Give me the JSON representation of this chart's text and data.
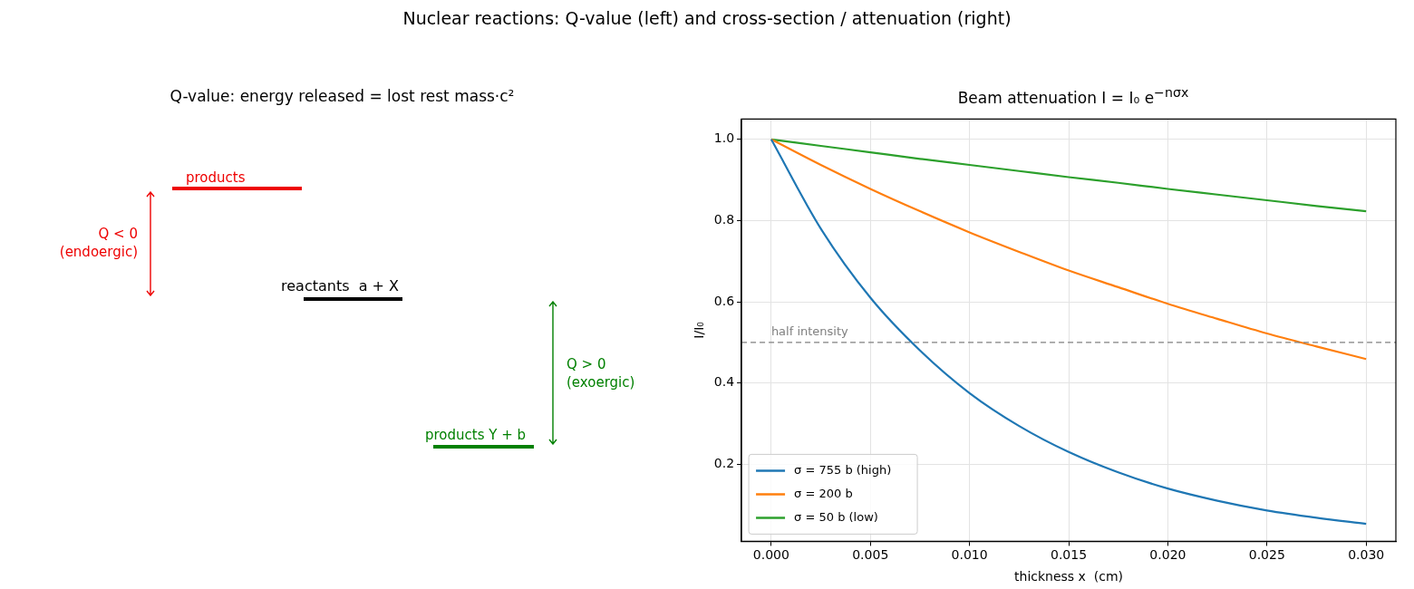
{
  "chart_data": [
    {
      "type": "other",
      "title": "Q-value: energy released = lost rest mass·c²",
      "annotations": [
        "Nuclear reactions: Q-value (left) and cross-section / attenuation (right)",
        "products",
        "Q < 0\n(endoergic)",
        "reactants  a + X",
        "Q > 0\n(exoergic)",
        "products Y + b"
      ]
    },
    {
      "type": "line",
      "title": "Beam attenuation  I = I₀ e$^{−nσx}$",
      "xlabel": "thickness x  (cm)",
      "ylabel": "I/I₀",
      "x": [
        0,
        0.0025,
        0.005,
        0.0075,
        0.01,
        0.0125,
        0.015,
        0.0175,
        0.02,
        0.0225,
        0.025,
        0.0275,
        0.03
      ],
      "series": [
        {
          "name": "σ = 755 b (high)",
          "color": "#1f77b4",
          "values": [
            1,
            0.78,
            0.61,
            0.48,
            0.375,
            0.294,
            0.23,
            0.18,
            0.14,
            0.11,
            0.086,
            0.068,
            0.053
          ]
        },
        {
          "name": "σ = 200 b",
          "color": "#ff7f0e",
          "values": [
            1,
            0.937,
            0.878,
            0.823,
            0.771,
            0.723,
            0.677,
            0.636,
            0.595,
            0.558,
            0.522,
            0.49,
            0.459
          ]
        },
        {
          "name": "σ = 50 b (low)",
          "color": "#2ca02c",
          "values": [
            1,
            0.984,
            0.968,
            0.952,
            0.937,
            0.922,
            0.907,
            0.893,
            0.878,
            0.864,
            0.85,
            0.836,
            0.823
          ]
        }
      ],
      "xlim": [
        -0.0015,
        0.0315
      ],
      "ylim": [
        0.01,
        1.05
      ],
      "xticks": [
        {
          "value": 0,
          "label": "0.000"
        },
        {
          "value": 0.005,
          "label": "0.005"
        },
        {
          "value": 0.01,
          "label": "0.010"
        },
        {
          "value": 0.015,
          "label": "0.015"
        },
        {
          "value": 0.02,
          "label": "0.020"
        },
        {
          "value": 0.025,
          "label": "0.025"
        },
        {
          "value": 0.03,
          "label": "0.030"
        }
      ],
      "yticks": [
        0.2,
        0.4,
        0.6,
        0.8,
        {
          "value": 1,
          "label": "1.0"
        }
      ],
      "ref_lines": [
        {
          "axis": "y",
          "value": 0.5,
          "label": "half intensity",
          "color": "#808080",
          "line_style": "dashed"
        }
      ],
      "grid": true,
      "legend": "bottom left",
      "marker": "none",
      "line_style": "solid"
    }
  ]
}
